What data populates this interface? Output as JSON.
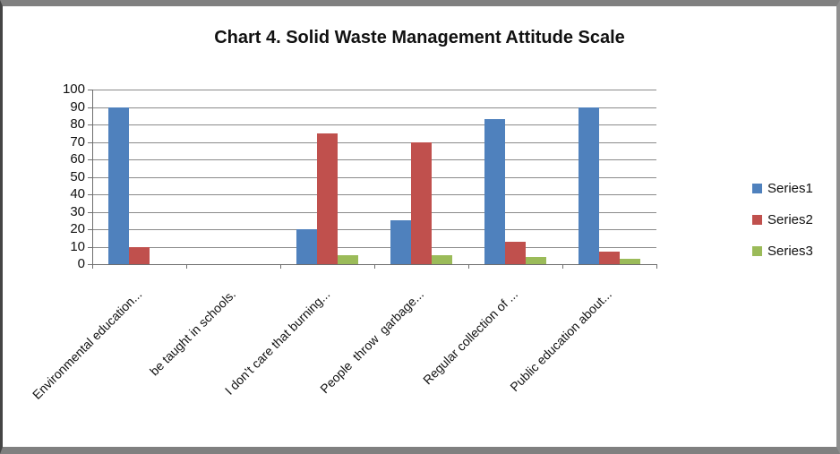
{
  "chart_data": {
    "type": "bar",
    "title": "Chart 4. Solid Waste Management Attitude Scale",
    "categories": [
      "Environmental education...",
      "be taught in schools.",
      "I don’t care that burning...",
      "People  throw  garbage...",
      "Regular collection of ...",
      "Public education about..."
    ],
    "series": [
      {
        "name": "Series1",
        "color": "#4F81BD",
        "values": [
          90,
          0,
          20,
          25,
          83,
          90
        ]
      },
      {
        "name": "Series2",
        "color": "#C0504D",
        "values": [
          10,
          0,
          75,
          70,
          13,
          7
        ]
      },
      {
        "name": "Series3",
        "color": "#9BBB59",
        "values": [
          0,
          0,
          5,
          5,
          4,
          3
        ]
      }
    ],
    "xlabel": "",
    "ylabel": "",
    "ylim": [
      0,
      100
    ],
    "ytick_step": 10,
    "ytick_labels": [
      "0",
      "10",
      "20",
      "30",
      "40",
      "50",
      "60",
      "70",
      "80",
      "90",
      "100"
    ],
    "grid": true,
    "legend_position": "right",
    "colors": {
      "gridline": "#8a8a8a",
      "axis": "#6e6e6e",
      "frame_border": "#808080"
    }
  }
}
